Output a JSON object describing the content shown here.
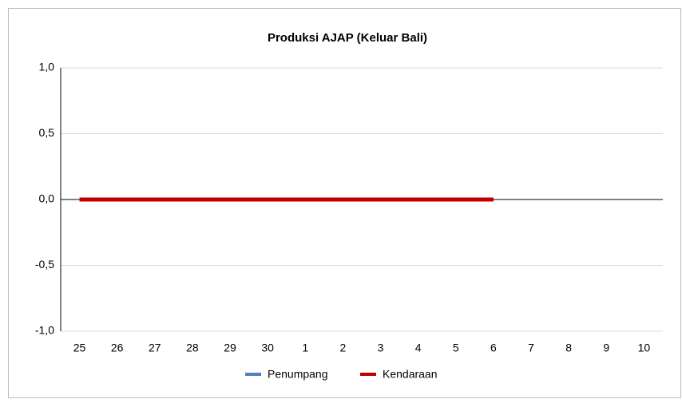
{
  "chart_data": {
    "type": "line",
    "title": "Produksi AJAP (Keluar Bali)",
    "categories": [
      "25",
      "26",
      "27",
      "28",
      "29",
      "30",
      "1",
      "2",
      "3",
      "4",
      "5",
      "6",
      "7",
      "8",
      "9",
      "10"
    ],
    "series": [
      {
        "name": "Penumpang",
        "color": "#4f81bd",
        "values": [
          0,
          0,
          0,
          0,
          0,
          0,
          0,
          0,
          0,
          0,
          0,
          0,
          null,
          null,
          null,
          null
        ]
      },
      {
        "name": "Kendaraan",
        "color": "#c00000",
        "values": [
          0,
          0,
          0,
          0,
          0,
          0,
          0,
          0,
          0,
          0,
          0,
          0,
          null,
          null,
          null,
          null
        ]
      }
    ],
    "ylim": [
      -1,
      1
    ],
    "yticks": [
      {
        "value": -1,
        "label": "-1,0"
      },
      {
        "value": -0.5,
        "label": "-0,5"
      },
      {
        "value": 0,
        "label": "0,0"
      },
      {
        "value": 0.5,
        "label": "0,5"
      },
      {
        "value": 1,
        "label": "1,0"
      }
    ],
    "grid": true,
    "legend": "bottom"
  }
}
